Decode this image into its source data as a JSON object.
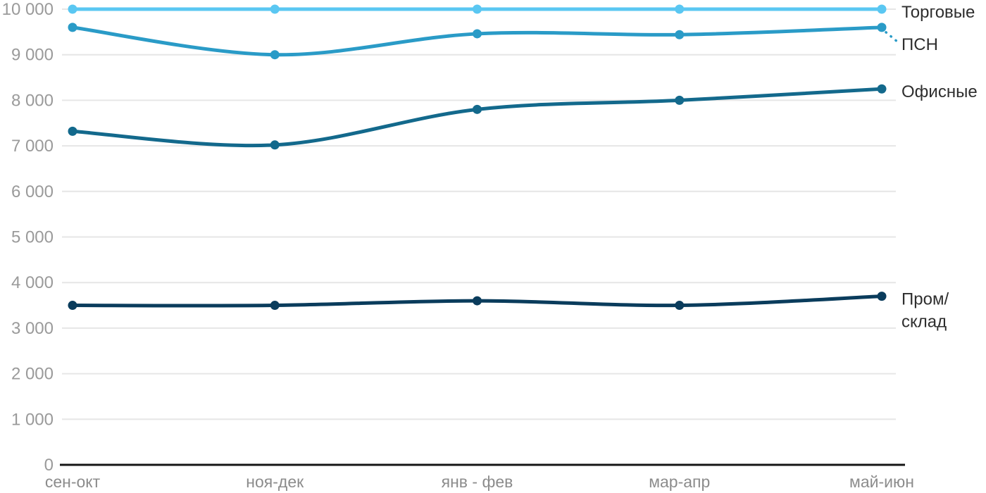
{
  "chart_data": {
    "type": "line",
    "title": "",
    "categories": [
      "сен-окт",
      "ноя-дек",
      "янв - фев",
      "мар-апр",
      "май-июн"
    ],
    "series": [
      {
        "name": "Торговые",
        "values": [
          10000,
          10000,
          10000,
          10000,
          10000
        ],
        "color": "#5AC7F2",
        "label_lines": [
          "Торговые"
        ],
        "label_offset_y": 4,
        "label_connector": false
      },
      {
        "name": "ПСН",
        "values": [
          9600,
          9000,
          9460,
          9440,
          9600
        ],
        "color": "#2A9BC7",
        "label_lines": [
          "ПСН"
        ],
        "label_offset_y": 24,
        "label_connector": true
      },
      {
        "name": "Офисные",
        "values": [
          7320,
          7020,
          7800,
          8000,
          8250
        ],
        "color": "#13698C",
        "label_lines": [
          "Офисные"
        ],
        "label_offset_y": 4,
        "label_connector": false
      },
      {
        "name": "Пром/склад",
        "values": [
          3500,
          3500,
          3600,
          3500,
          3700
        ],
        "color": "#0A3C5C",
        "label_lines": [
          "Пром/",
          "склад"
        ],
        "label_offset_y": 4,
        "label_connector": false
      }
    ],
    "y_axis": {
      "min": 0,
      "max": 10000,
      "tick_interval": 1000,
      "ticks": [
        {
          "value": 0,
          "label": "0"
        },
        {
          "value": 1000,
          "label": "1 000"
        },
        {
          "value": 2000,
          "label": "2 000"
        },
        {
          "value": 3000,
          "label": "3 000"
        },
        {
          "value": 4000,
          "label": "4 000"
        },
        {
          "value": 5000,
          "label": "5 000"
        },
        {
          "value": 6000,
          "label": "6 000"
        },
        {
          "value": 7000,
          "label": "7 000"
        },
        {
          "value": 8000,
          "label": "8 000"
        },
        {
          "value": 9000,
          "label": "9 000"
        },
        {
          "value": 10000,
          "label": "10 000"
        }
      ]
    },
    "xlabel": "",
    "ylabel": "",
    "grid": true,
    "legend_position": "right-inline-labels"
  },
  "colors": {
    "gridline": "#E6E6E6",
    "axis_line": "#161616",
    "y_tick_text": "#9A9A9A",
    "x_tick_text": "#8C8C8C",
    "series_label_text": "#2E2E2E",
    "background": "#FFFFFF"
  }
}
